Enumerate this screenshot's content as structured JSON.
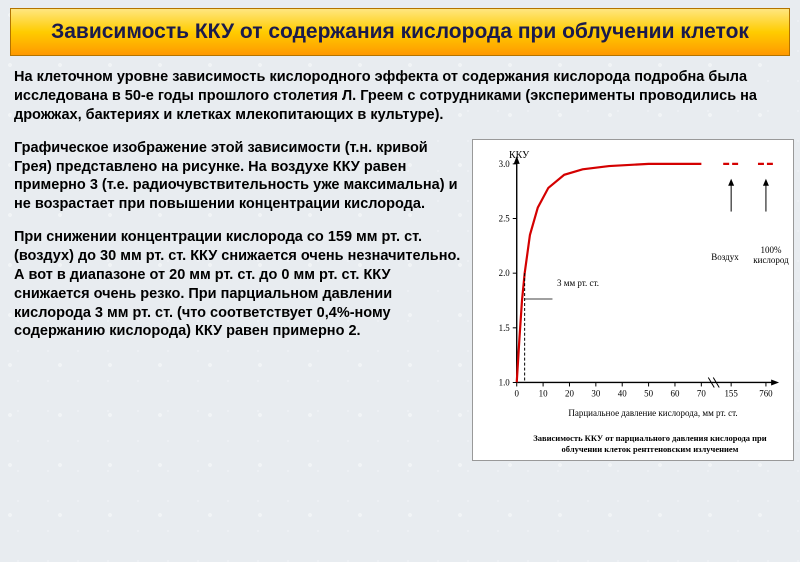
{
  "title": "Зависимость ККУ от содержания кислорода при облучении клеток",
  "intro": "На клеточном уровне зависимость кислородного эффекта от содержания кислорода подробна была исследована в 50-е годы прошлого столетия Л. Греем с сотрудниками (эксперименты проводились на дрожжах, бактериях и клетках млекопитающих в культуре).",
  "para1": "Графическое изображение этой зависимости (т.н. кривой Грея) представлено на рисунке. На воздухе ККУ равен примерно 3 (т.е. радиочувствительность уже максимальна) и не возрастает при повышении концентрации кислорода.",
  "para2": "При снижении концентрации кислорода со 159 мм рт. ст. (воздух) до 30 мм рт. ст. ККУ снижается очень незначительно. А вот в диапазоне от 20 мм рт. ст. до 0 мм рт. ст. ККУ снижается очень резко. При парциальном давлении кислорода 3 мм рт. ст. (что соответствует 0,4%-ному содержанию кислорода) ККУ равен примерно 2.",
  "chart": {
    "type": "line",
    "ylabel": "ККУ",
    "xlabel": "Парциальное давление кислорода, мм рт. ст.",
    "caption": "Зависимость ККУ от парциального давления кислорода при облучении клеток рентгеновским излучением",
    "anno_3mm": "3 мм рт. ст.",
    "anno_air": "Воздух",
    "anno_o2": "100% кислород",
    "yticks": [
      "1.0",
      "1.5",
      "2.0",
      "2.5",
      "3.0"
    ],
    "xticks_main": [
      "0",
      "10",
      "20",
      "30",
      "40",
      "50",
      "60",
      "70"
    ],
    "xticks_break": [
      "155",
      "760"
    ],
    "curve_color": "#d40000",
    "curve_width": 2.2,
    "axis_color": "#000000",
    "tick_fontsize": 9,
    "points": [
      {
        "x": 0,
        "y": 1.0
      },
      {
        "x": 1,
        "y": 1.4
      },
      {
        "x": 2,
        "y": 1.75
      },
      {
        "x": 3,
        "y": 2.0
      },
      {
        "x": 5,
        "y": 2.35
      },
      {
        "x": 8,
        "y": 2.6
      },
      {
        "x": 12,
        "y": 2.78
      },
      {
        "x": 18,
        "y": 2.9
      },
      {
        "x": 25,
        "y": 2.95
      },
      {
        "x": 35,
        "y": 2.98
      },
      {
        "x": 50,
        "y": 3.0
      },
      {
        "x": 70,
        "y": 3.0
      }
    ]
  }
}
